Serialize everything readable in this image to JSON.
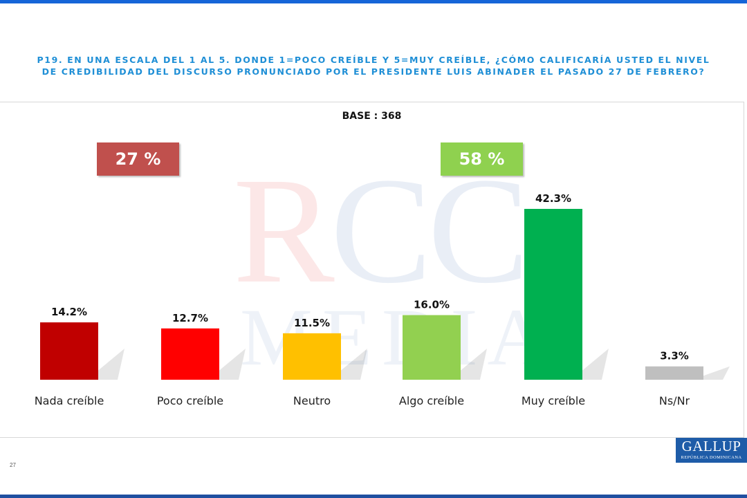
{
  "question": "P19.  EN UNA ESCALA DEL 1 AL 5. DONDE 1=POCO CREÍBLE Y 5=MUY CREÍBLE, ¿CÓMO CALIFICARÍA USTED EL NIVEL DE CREDIBILIDAD DEL DISCURSO PRONUNCIADO POR EL PRESIDENTE LUIS ABINADER EL PASADO 27 DE FEBRERO?",
  "base_label": "BASE : 368",
  "summary": {
    "negative": "27 %",
    "positive": "58 %"
  },
  "watermark": {
    "line1": "RCC",
    "line2": "MEDIA"
  },
  "page_number": "27",
  "logo": {
    "name": "GALLUP",
    "subtitle": "REPÚBLICA DOMINICANA"
  },
  "chart_data": {
    "type": "bar",
    "title": "",
    "xlabel": "",
    "ylabel": "",
    "categories": [
      "Nada creíble",
      "Poco creíble",
      "Neutro",
      "Algo creíble",
      "Muy creíble",
      "Ns/Nr"
    ],
    "values": [
      14.2,
      12.7,
      11.5,
      16.0,
      42.3,
      3.3
    ],
    "value_labels": [
      "14.2%",
      "12.7%",
      "11.5%",
      "16.0%",
      "42.3%",
      "3.3%"
    ],
    "colors": [
      "#c00000",
      "#ff0000",
      "#ffc000",
      "#92d050",
      "#00b050",
      "#bfbfbf"
    ],
    "ylim": [
      0,
      45
    ],
    "grid": false,
    "legend": "none"
  }
}
